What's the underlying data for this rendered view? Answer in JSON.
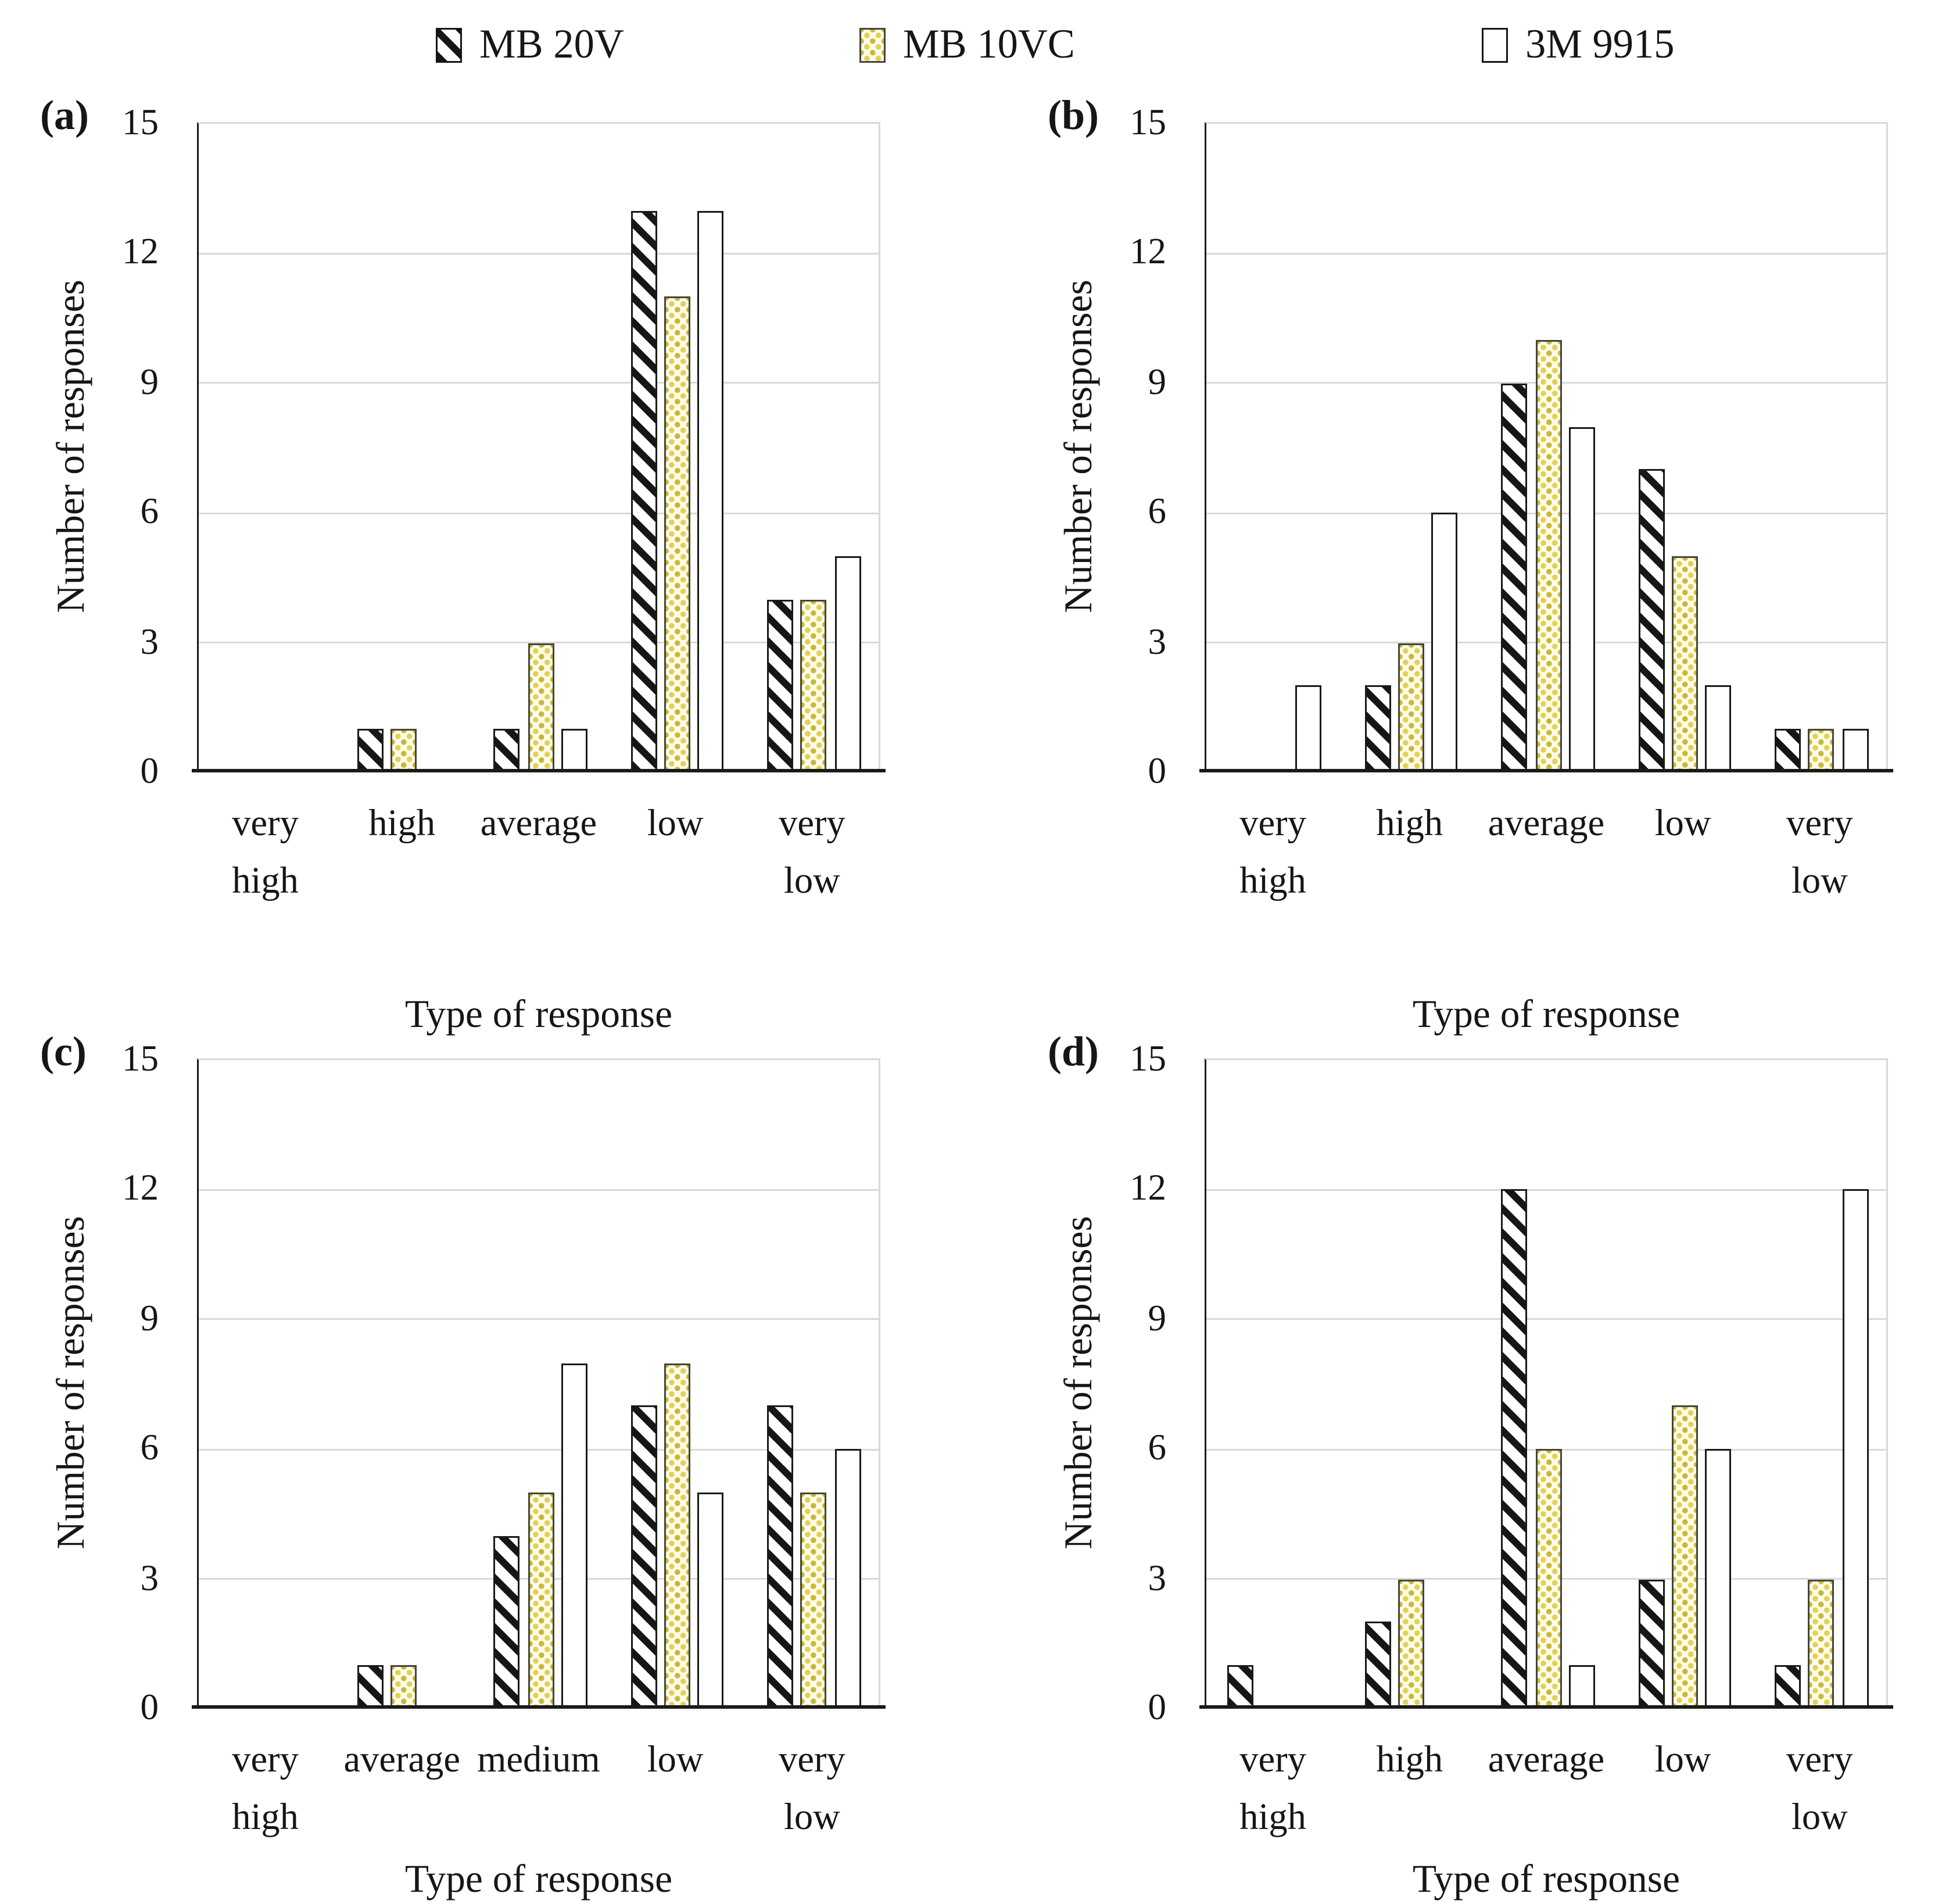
{
  "legend": {
    "items": [
      {
        "label": "MB 20V",
        "pattern": "black-diagonal-stripes"
      },
      {
        "label": "MB 10VC",
        "pattern": "yellow-dots"
      },
      {
        "label": "3M 9915",
        "pattern": "white-empty"
      }
    ]
  },
  "colors": {
    "stripe_black": "#161616",
    "dot_yellow": "#e3d055",
    "dot_yellow_dark": "#c9b838",
    "dot_background": "#fefce9",
    "gridline": "#d9d9d9",
    "axis": "#1a1a1a"
  },
  "chart_data": [
    {
      "type": "bar",
      "panel_label": "(a)",
      "xlabel": "Type of response",
      "ylabel": "Number of responses",
      "ylim": [
        0,
        15
      ],
      "yticks": [
        15,
        12,
        9,
        6,
        3,
        0
      ],
      "grid": "horizontal",
      "legend_position": "top-shared",
      "categories": [
        "very high",
        "high",
        "average",
        "low",
        "very low"
      ],
      "series": [
        {
          "name": "MB 20V",
          "values": [
            0,
            1,
            1,
            13,
            4
          ]
        },
        {
          "name": "MB 10VC",
          "values": [
            0,
            1,
            3,
            11,
            4
          ]
        },
        {
          "name": "3M 9915",
          "values": [
            0,
            0,
            1,
            13,
            5
          ]
        }
      ]
    },
    {
      "type": "bar",
      "panel_label": "(b)",
      "xlabel": "Type of response",
      "ylabel": "Number of responses",
      "ylim": [
        0,
        15
      ],
      "yticks": [
        15,
        12,
        9,
        6,
        3,
        0
      ],
      "grid": "horizontal",
      "legend_position": "top-shared",
      "categories": [
        "very high",
        "high",
        "average",
        "low",
        "very low"
      ],
      "series": [
        {
          "name": "MB 20V",
          "values": [
            0,
            2,
            9,
            7,
            1
          ]
        },
        {
          "name": "MB 10VC",
          "values": [
            0,
            3,
            10,
            5,
            1
          ]
        },
        {
          "name": "3M 9915",
          "values": [
            2,
            6,
            8,
            2,
            1
          ]
        }
      ]
    },
    {
      "type": "bar",
      "panel_label": "(c)",
      "xlabel": "Type of response",
      "ylabel": "Number of responses",
      "ylim": [
        0,
        15
      ],
      "yticks": [
        15,
        12,
        9,
        6,
        3,
        0
      ],
      "grid": "horizontal",
      "legend_position": "top-shared",
      "categories": [
        "very high",
        "average",
        "medium",
        "low",
        "very low"
      ],
      "series": [
        {
          "name": "MB 20V",
          "values": [
            0,
            1,
            4,
            7,
            7
          ]
        },
        {
          "name": "MB 10VC",
          "values": [
            0,
            1,
            5,
            8,
            5
          ]
        },
        {
          "name": "3M 9915",
          "values": [
            0,
            0,
            8,
            5,
            6
          ]
        }
      ]
    },
    {
      "type": "bar",
      "panel_label": "(d)",
      "xlabel": "Type of response",
      "ylabel": "Number of responses",
      "ylim": [
        0,
        15
      ],
      "yticks": [
        15,
        12,
        9,
        6,
        3,
        0
      ],
      "grid": "horizontal",
      "legend_position": "top-shared",
      "categories": [
        "very high",
        "high",
        "average",
        "low",
        "very low"
      ],
      "series": [
        {
          "name": "MB 20V",
          "values": [
            1,
            2,
            12,
            3,
            1
          ]
        },
        {
          "name": "MB 10VC",
          "values": [
            0,
            3,
            6,
            7,
            3
          ]
        },
        {
          "name": "3M 9915",
          "values": [
            0,
            0,
            1,
            6,
            12
          ]
        }
      ]
    }
  ]
}
